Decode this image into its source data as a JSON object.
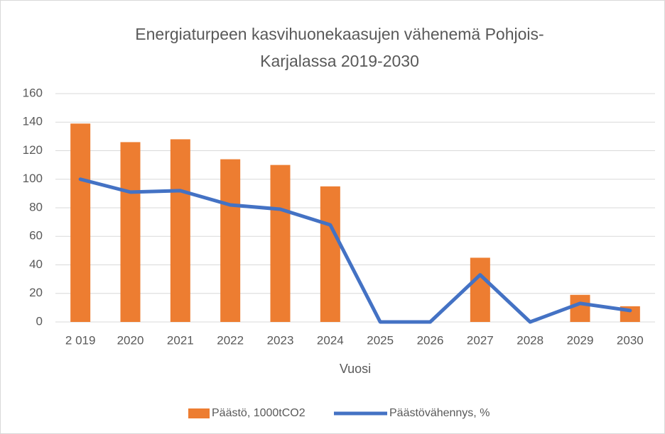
{
  "chart_data": {
    "type": "bar+line",
    "title": [
      "Energiaturpeen kasvihuonekaasujen vähenemä Pohjois-",
      "Karjalassa 2019-2030"
    ],
    "x_label": "Vuosi",
    "categories": [
      "2 019",
      "2020",
      "2021",
      "2022",
      "2023",
      "2024",
      "2025",
      "2026",
      "2027",
      "2028",
      "2029",
      "2030"
    ],
    "series": [
      {
        "name": "Päästö, 1000tCO2",
        "type": "bar",
        "color": "#ed7d31",
        "values": [
          139,
          126,
          128,
          114,
          110,
          95,
          0,
          0,
          45,
          0,
          19,
          11
        ]
      },
      {
        "name": "Päästövähennys, %",
        "type": "line",
        "color": "#4472c4",
        "values": [
          100,
          91,
          92,
          82,
          79,
          68,
          0,
          0,
          33,
          0,
          13,
          8
        ]
      }
    ],
    "ylim": [
      0,
      160
    ],
    "yticks": [
      0,
      20,
      40,
      60,
      80,
      100,
      120,
      140,
      160
    ],
    "grid": true,
    "legend": "bottom"
  }
}
